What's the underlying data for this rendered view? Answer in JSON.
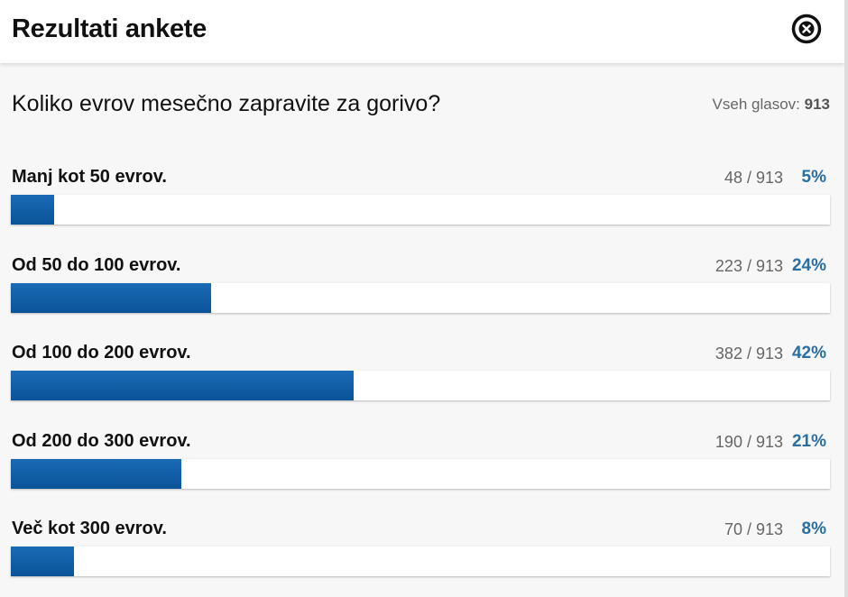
{
  "header": {
    "title": "Rezultati ankete",
    "close_icon": "close-circle-x-icon"
  },
  "poll": {
    "question": "Koliko evrov mesečno zapravite za gorivo?",
    "total_label": "Vseh glasov:",
    "total_votes": "913",
    "bar_color": "#0a5ba6",
    "percent_color": "#2a6fa3",
    "options": [
      {
        "label": "Manj kot 50 evrov.",
        "votes": "48 / 913",
        "percent": "5%",
        "fraction": 0.053
      },
      {
        "label": "Od 50 do 100 evrov.",
        "votes": "223 / 913",
        "percent": "24%",
        "fraction": 0.244
      },
      {
        "label": "Od 100 do 200 evrov.",
        "votes": "382 / 913",
        "percent": "42%",
        "fraction": 0.418
      },
      {
        "label": "Od 200 do 300 evrov.",
        "votes": "190 / 913",
        "percent": "21%",
        "fraction": 0.208
      },
      {
        "label": "Več kot 300 evrov.",
        "votes": "70 / 913",
        "percent": "8%",
        "fraction": 0.077
      }
    ]
  }
}
